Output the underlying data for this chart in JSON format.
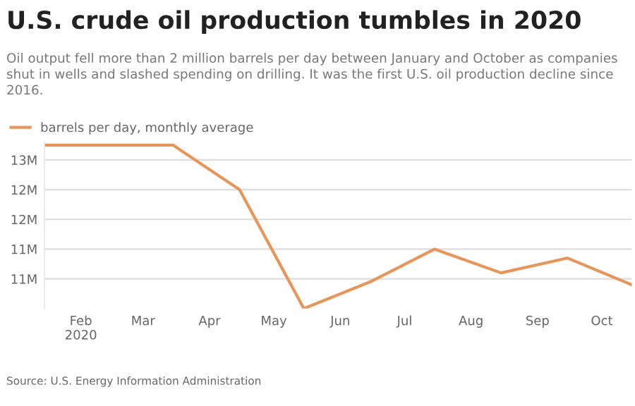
{
  "chart_data": {
    "type": "line",
    "title": "U.S. crude oil production tumbles in 2020",
    "subtitle": "Oil output fell more than 2 million barrels per day between January and October as companies shut in wells and slashed spending on drilling. It was the first U.S. oil production decline since 2016.",
    "annotations": [
      "Source: U.S. Energy Information Administration"
    ],
    "x": [
      "2020-01-15",
      "2020-02-15",
      "2020-03-15",
      "2020-04-15",
      "2020-05-15",
      "2020-06-15",
      "2020-07-15",
      "2020-08-15",
      "2020-09-15",
      "2020-10-15"
    ],
    "series": [
      {
        "name": "barrels per day, monthly average",
        "color": "#e8955a",
        "values": [
          12.75,
          12.75,
          12.75,
          12.0,
          10.0,
          10.45,
          11.0,
          10.6,
          10.85,
          10.4
        ]
      }
    ],
    "xlim": [
      "2020-01-15",
      "2020-10-15"
    ],
    "xticks": [
      {
        "value": "2020-02-01",
        "label": "Feb\n2020"
      },
      {
        "value": "2020-03-01",
        "label": "Mar"
      },
      {
        "value": "2020-04-01",
        "label": "Apr"
      },
      {
        "value": "2020-05-01",
        "label": "May"
      },
      {
        "value": "2020-06-01",
        "label": "Jun"
      },
      {
        "value": "2020-07-01",
        "label": "Jul"
      },
      {
        "value": "2020-08-01",
        "label": "Aug"
      },
      {
        "value": "2020-09-01",
        "label": "Sep"
      },
      {
        "value": "2020-10-01",
        "label": "Oct"
      }
    ],
    "ylim": [
      10.0,
      12.8
    ],
    "yticks": [
      {
        "value": 10.5,
        "label": "11M"
      },
      {
        "value": 11.0,
        "label": "11M"
      },
      {
        "value": 11.5,
        "label": "12M"
      },
      {
        "value": 12.0,
        "label": "12M"
      },
      {
        "value": 12.5,
        "label": "13M"
      }
    ],
    "grid": "y",
    "legend": "top left",
    "marker": "none",
    "line_style": "solid"
  }
}
